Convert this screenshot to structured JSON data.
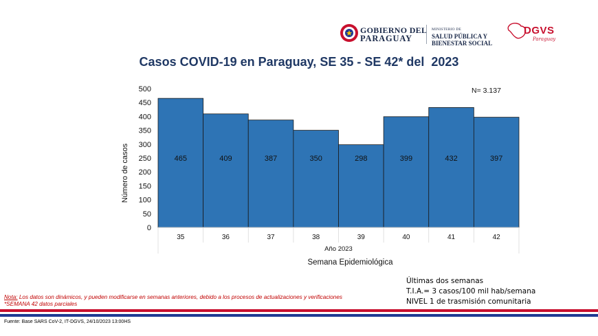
{
  "header": {
    "gov_line1": "GOBIERNO DEL",
    "gov_line2": "PARAGUAY",
    "ministry_line1": "MINISTERIO DE",
    "ministry_line2": "SALUD PÚBLICA Y",
    "ministry_line3": "BIENESTAR SOCIAL",
    "agency": "DGVS",
    "agency_sub": "Paraguay"
  },
  "chart_data": {
    "type": "bar",
    "title": "Casos COVID-19 en Paraguay, SE 35 - SE 42* del  2023",
    "categories": [
      "35",
      "36",
      "37",
      "38",
      "39",
      "40",
      "41",
      "42"
    ],
    "values": [
      465,
      409,
      387,
      350,
      298,
      399,
      432,
      397
    ],
    "ylim": [
      0,
      500
    ],
    "yticks": [
      0,
      50,
      100,
      150,
      200,
      250,
      300,
      350,
      400,
      450,
      500
    ],
    "ylabel": "Número de casos",
    "xgroup_label": "Año 2023",
    "xlabel": "Semana Epidemiológica",
    "annotation": "N= 3.137",
    "bar_color": "#2e74b5",
    "grid": false
  },
  "notes": {
    "note_label": "Nota:",
    "note_text": " Los datos son dinámicos, y pueden modificarse en semanas anteriores, debido a los procesos de actualizaciones y verificaciones",
    "partial": "*SEMANA 42 datos parciales"
  },
  "status": {
    "line1": "Últimas dos semanas",
    "line2": "T.I.A.= 3 casos/100 mil hab/semana",
    "line3": "NIVEL 1 de trasmisión comunitaria"
  },
  "source": "Fuente: Base SARS CoV-2, IT-DGVS, 24/10/2023 13:00HS",
  "colors": {
    "red": "#c8102e",
    "blue": "#1f3a93",
    "title": "#1f3864"
  }
}
